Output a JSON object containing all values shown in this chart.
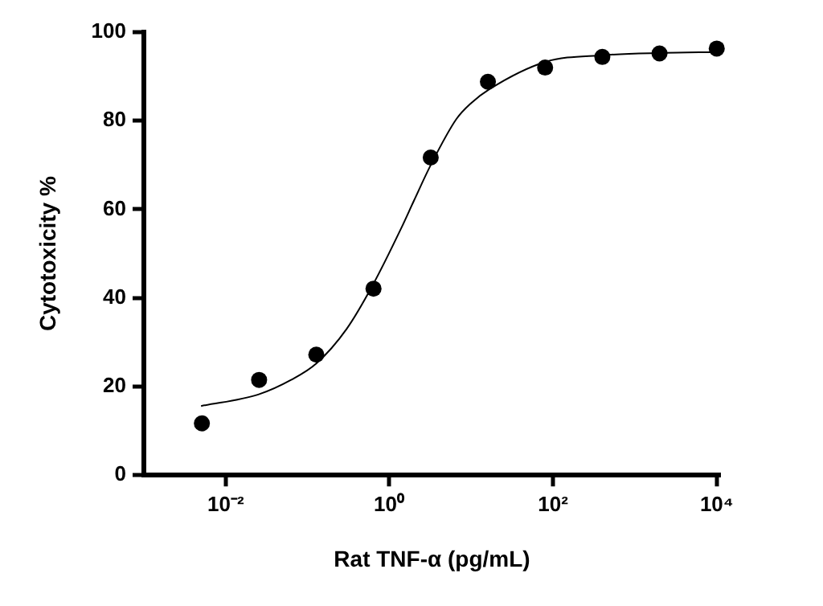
{
  "chart_data": {
    "type": "scatter",
    "xlabel": "Rat TNF-α (pg/mL)",
    "ylabel": "Cytotoxicity %",
    "log": "x",
    "grid": false,
    "legend": false,
    "marker": "circle",
    "xlim": [
      0.001,
      11000
    ],
    "xticks": [
      {
        "value": 0.01,
        "label": "10⁻²"
      },
      {
        "value": 1,
        "label": "10⁰"
      },
      {
        "value": 100,
        "label": "10²"
      },
      {
        "value": 10000,
        "label": "10⁴"
      }
    ],
    "ylim": [
      0,
      100
    ],
    "yticks": [
      0,
      20,
      40,
      60,
      80,
      100
    ],
    "series": [
      {
        "color": "#000000",
        "x": [
          0.00512,
          0.0256,
          0.128,
          0.64,
          3.2,
          16,
          80,
          400,
          2000,
          10000
        ],
        "values": [
          11.7,
          21.5,
          27.2,
          42.1,
          71.7,
          88.8,
          92.0,
          94.4,
          95.2,
          96.3
        ]
      },
      {
        "type": "line",
        "marker": "none",
        "color": "#000000",
        "x": [
          0.005,
          0.025,
          0.063,
          0.128,
          0.3,
          0.63,
          1.4,
          2.0,
          3.2,
          6.6,
          10,
          16.6,
          81,
          410,
          2100,
          10400
        ],
        "values": [
          15.6,
          18.2,
          21.5,
          25.2,
          33,
          43,
          55.8,
          62,
          70,
          80.4,
          84,
          87.1,
          93.3,
          94.8,
          95.3,
          95.5
        ]
      }
    ]
  }
}
